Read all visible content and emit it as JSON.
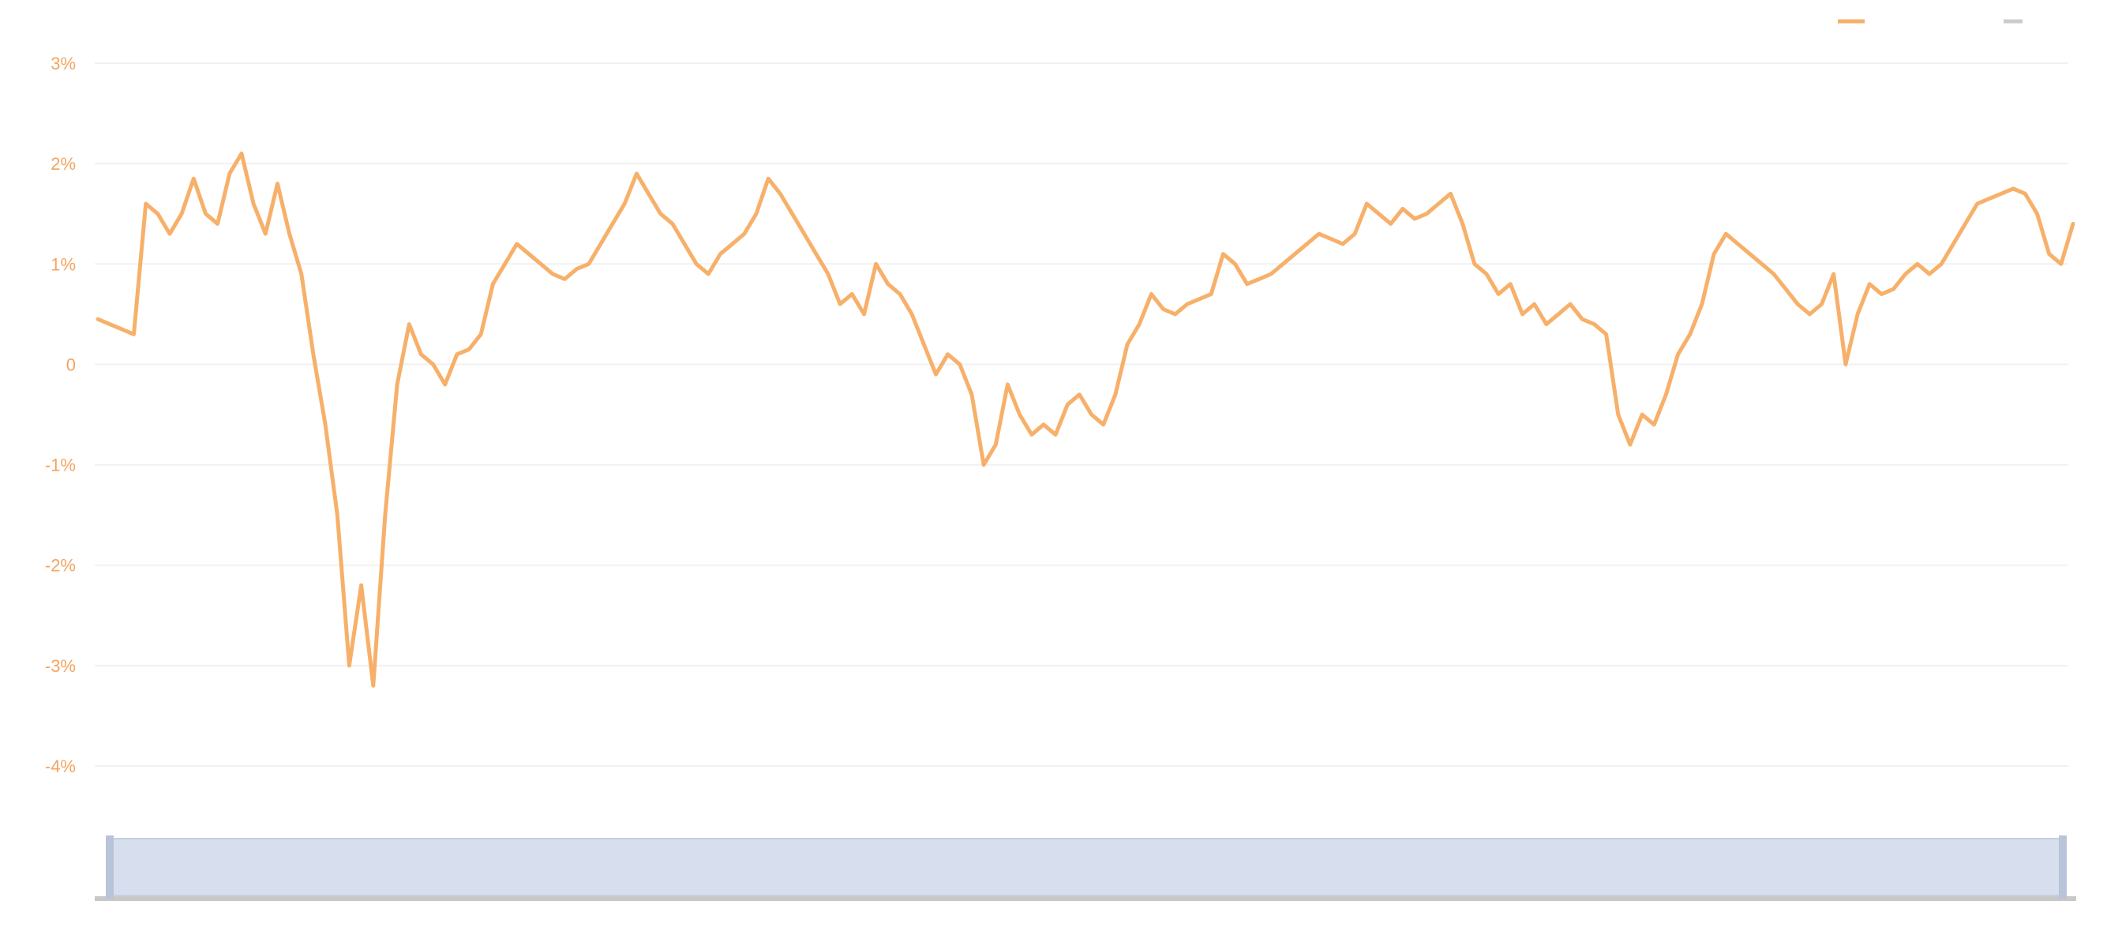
{
  "chart_data": {
    "type": "line",
    "title": "",
    "xlabel": "",
    "ylabel": "",
    "y_ticks": [
      "3%",
      "2%",
      "1%",
      "0",
      "-1%",
      "-2%",
      "-3%",
      "-4%"
    ],
    "x_ticks": [
      "",
      "",
      "",
      "",
      "",
      "",
      "",
      "",
      "",
      "",
      ""
    ],
    "ylim": [
      -4,
      3
    ],
    "grid": true,
    "legend": "top-right",
    "series": [
      {
        "name": "",
        "color": "#f7b06a",
        "values": [
          0.45,
          0.4,
          0.35,
          0.3,
          1.6,
          1.5,
          1.3,
          1.5,
          1.85,
          1.5,
          1.4,
          1.9,
          2.1,
          1.6,
          1.3,
          1.8,
          1.3,
          0.9,
          0.1,
          -0.6,
          -1.5,
          -3.0,
          -2.2,
          -3.2,
          -1.5,
          -0.2,
          0.4,
          0.1,
          0.0,
          -0.2,
          0.1,
          0.15,
          0.3,
          0.8,
          1.0,
          1.2,
          1.1,
          1.0,
          0.9,
          0.85,
          0.95,
          1.0,
          1.2,
          1.4,
          1.6,
          1.9,
          1.7,
          1.5,
          1.4,
          1.2,
          1.0,
          0.9,
          1.1,
          1.2,
          1.3,
          1.5,
          1.85,
          1.7,
          1.5,
          1.3,
          1.1,
          0.9,
          0.6,
          0.7,
          0.5,
          1.0,
          0.8,
          0.7,
          0.5,
          0.2,
          -0.1,
          0.1,
          0.0,
          -0.3,
          -1.0,
          -0.8,
          -0.2,
          -0.5,
          -0.7,
          -0.6,
          -0.7,
          -0.4,
          -0.3,
          -0.5,
          -0.6,
          -0.3,
          0.2,
          0.4,
          0.7,
          0.55,
          0.5,
          0.6,
          0.65,
          0.7,
          1.1,
          1.0,
          0.8,
          0.85,
          0.9,
          1.0,
          1.1,
          1.2,
          1.3,
          1.25,
          1.2,
          1.3,
          1.6,
          1.5,
          1.4,
          1.55,
          1.45,
          1.5,
          1.6,
          1.7,
          1.4,
          1.0,
          0.9,
          0.7,
          0.8,
          0.5,
          0.6,
          0.4,
          0.5,
          0.6,
          0.45,
          0.4,
          0.3,
          -0.5,
          -0.8,
          -0.5,
          -0.6,
          -0.3,
          0.1,
          0.3,
          0.6,
          1.1,
          1.3,
          1.2,
          1.1,
          1.0,
          0.9,
          0.75,
          0.6,
          0.5,
          0.6,
          0.9,
          0.0,
          0.5,
          0.8,
          0.7,
          0.75,
          0.9,
          1.0,
          0.9,
          1.0,
          1.2,
          1.4,
          1.6,
          1.65,
          1.7,
          1.75,
          1.7,
          1.5,
          1.1,
          1.0,
          1.4
        ]
      }
    ]
  },
  "legend": {
    "primary": {
      "label": "",
      "color": "#f7b06a"
    },
    "secondary": {
      "label": "",
      "color": "#cccccc"
    }
  },
  "datazoom": {
    "fill": "#d7dfef",
    "border": "#c5cfe3",
    "labels": [
      "",
      "",
      "",
      "",
      ""
    ]
  }
}
